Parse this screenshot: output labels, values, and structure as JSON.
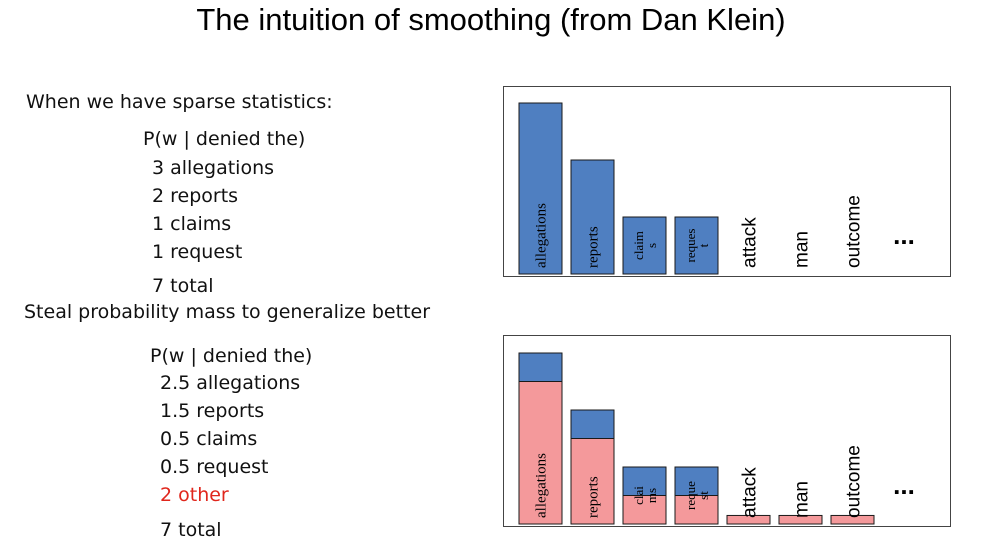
{
  "title": "The intuition of smoothing (from Dan Klein)",
  "sparse": {
    "heading": "When we have sparse statistics:",
    "dist_label": "P(w | denied the)",
    "lines": [
      "3 allegations",
      "2 reports",
      "1 claims",
      "1 request"
    ],
    "total": "7 total"
  },
  "smoothed": {
    "heading": "Steal probability mass to generalize better",
    "dist_label": "P(w | denied the)",
    "lines": [
      "2.5 allegations",
      "1.5 reports",
      "0.5 claims",
      "0.5 request"
    ],
    "other": "2 other",
    "total": "7 total"
  },
  "colors": {
    "observed": "#4f7fc1",
    "smoothed": "#f4999b",
    "other_text": "#e0261c",
    "border": "#1a1a1a"
  },
  "chart_data": [
    {
      "type": "bar",
      "categories": [
        "allegations",
        "reports",
        "claims",
        "request",
        "attack",
        "man",
        "outcome",
        "..."
      ],
      "bar_labels": [
        [
          "allegations"
        ],
        [
          "reports"
        ],
        [
          "claim",
          "s"
        ],
        [
          "reques",
          "t"
        ],
        [
          "attack"
        ],
        [
          "man"
        ],
        [
          "outcome"
        ],
        [
          "..."
        ]
      ],
      "series": [
        {
          "values": [
            3,
            2,
            1,
            1,
            0,
            0,
            0,
            0
          ]
        }
      ]
    },
    {
      "type": "bar",
      "stacked": true,
      "categories": [
        "allegations",
        "reports",
        "claims",
        "request",
        "attack",
        "man",
        "outcome",
        "..."
      ],
      "bar_labels": [
        [
          "allegations"
        ],
        [
          "reports"
        ],
        [
          "clai",
          "ms"
        ],
        [
          "reque",
          "st"
        ],
        [
          "attack"
        ],
        [
          "man"
        ],
        [
          "outcome"
        ],
        [
          "..."
        ]
      ],
      "series": [
        {
          "values": [
            2.5,
            1.5,
            0.5,
            0.5,
            0.15,
            0.15,
            0.15,
            0
          ]
        },
        {
          "values": [
            0.5,
            0.5,
            0.5,
            0.5,
            0,
            0,
            0,
            0
          ]
        }
      ]
    }
  ]
}
